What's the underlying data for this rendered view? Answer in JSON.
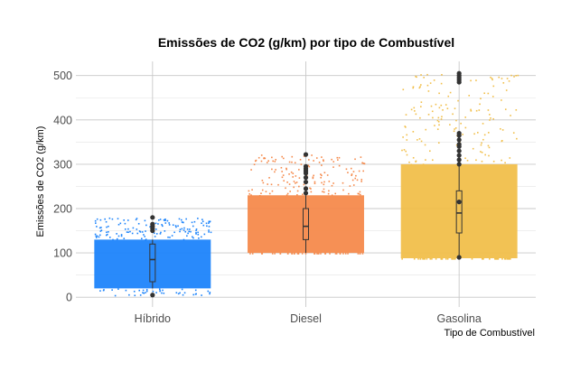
{
  "chart_data": {
    "type": "scatter",
    "title": "Emissões de CO2 (g/km) por tipo de Combustível",
    "xlabel": "Tipo de Combustível",
    "ylabel": "Emissões de CO2 (g/km)",
    "categories": [
      "Híbrido",
      "Diesel",
      "Gasolina"
    ],
    "ylim": [
      -22,
      532
    ],
    "yticks": [
      0,
      100,
      200,
      300,
      400,
      500
    ],
    "grid": true,
    "legend": "none",
    "colors": {
      "Híbrido": "#1d84fb",
      "Diesel": "#f58a4c",
      "Gasolina": "#f1bf4b",
      "box": "#333333"
    },
    "boxplots": [
      {
        "category": "Híbrido",
        "min": 20,
        "q1": 35,
        "median": 85,
        "q3": 120,
        "max": 130,
        "outliers": [
          5,
          150,
          155,
          160,
          165,
          180
        ]
      },
      {
        "category": "Diesel",
        "min": 100,
        "q1": 130,
        "median": 160,
        "q3": 200,
        "max": 230,
        "outliers": [
          235,
          245,
          260,
          270,
          280,
          285,
          290,
          295,
          322
        ]
      },
      {
        "category": "Gasolina",
        "min": 88,
        "q1": 145,
        "median": 190,
        "q3": 240,
        "max": 300,
        "outliers": [
          90,
          215,
          300,
          310,
          320,
          330,
          340,
          345,
          355,
          365,
          370,
          485,
          490,
          495,
          500,
          505
        ]
      }
    ]
  }
}
